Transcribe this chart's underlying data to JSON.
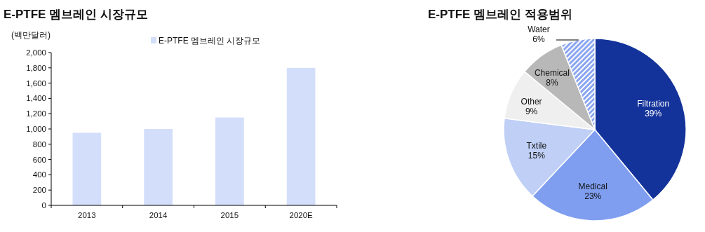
{
  "chart_data": [
    {
      "type": "bar",
      "title": "E-PTFE 멤브레인 시장규모",
      "ylabel": "(백만달러)",
      "categories": [
        "2013",
        "2014",
        "2015",
        "2020E"
      ],
      "series": [
        {
          "name": "E-PTFE 멤브레인 시장규모",
          "color": "#d3defa",
          "values": [
            950,
            1000,
            1150,
            1800
          ]
        }
      ],
      "ylim": [
        0,
        2000
      ],
      "yticks": [
        {
          "value": 0,
          "label": "0"
        },
        {
          "value": 200,
          "label": "200"
        },
        {
          "value": 400,
          "label": "400"
        },
        {
          "value": 600,
          "label": "600"
        },
        {
          "value": 800,
          "label": "800"
        },
        {
          "value": 1000,
          "label": "1,000"
        },
        {
          "value": 1200,
          "label": "1,200"
        },
        {
          "value": 1400,
          "label": "1,400"
        },
        {
          "value": 1600,
          "label": "1,600"
        },
        {
          "value": 1800,
          "label": "1,800"
        },
        {
          "value": 2000,
          "label": "2,000"
        }
      ],
      "grid": false,
      "legend": "top"
    },
    {
      "type": "pie",
      "title": "E-PTFE 멤브레인 적용범위",
      "categories": [
        "Filtration",
        "Medical",
        "Txtile",
        "Other",
        "Chemical",
        "Water"
      ],
      "values": [
        39,
        23,
        15,
        9,
        8,
        6
      ],
      "colors": [
        "#14339a",
        "#7f9ef0",
        "#bfcff5",
        "#efefef",
        "#b8b8b8",
        "#8aa5f0"
      ],
      "value_labels": [
        "39%",
        "23%",
        "15%",
        "9%",
        "8%",
        "6%"
      ]
    }
  ]
}
